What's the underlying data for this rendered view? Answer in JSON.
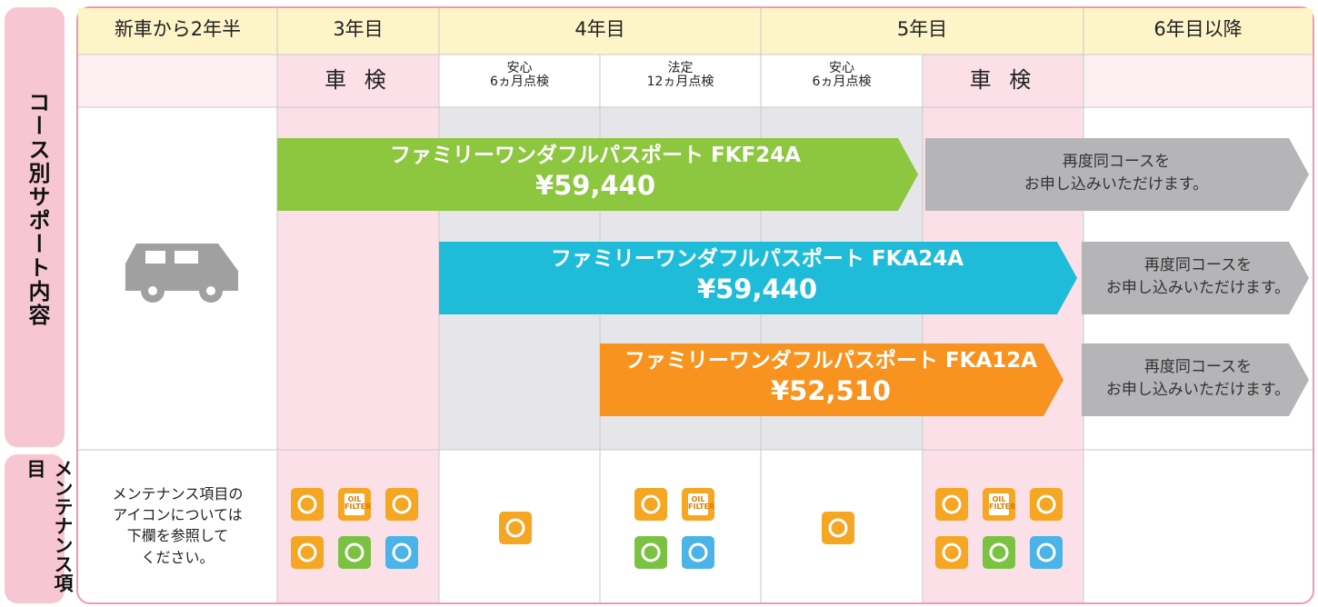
{
  "side_labels": [
    "コース別サポート内容",
    "メンテナンス項目"
  ],
  "header": [
    "新車から2年半",
    "3年目",
    "4年目",
    "5年目",
    "6年目以降"
  ],
  "inspections": [
    [
      "車 検"
    ],
    [
      "安心",
      "6ヵ月点検"
    ],
    [
      "法定",
      "12ヵ月点検"
    ],
    [
      "安心",
      "6ヵ月点検"
    ],
    [
      "車 検"
    ]
  ],
  "courses": [
    {
      "name": "ファミリーワンダフルパスポート FKF24A",
      "price": "¥59,440",
      "renewal": [
        "再度同コースを",
        "お申し込みいただけます。"
      ]
    },
    {
      "name": "ファミリーワンダフルパスポート FKA24A",
      "price": "¥59,440",
      "renewal": [
        "再度同コースを",
        "お申し込みいただけます。"
      ]
    },
    {
      "name": "ファミリーワンダフルパスポート FKA12A",
      "price": "¥52,510",
      "renewal": [
        "再度同コースを",
        "お申し込みいただけます。"
      ]
    }
  ],
  "maintenance_note": [
    "メンテナンス項目の",
    "アイコンについては",
    "下欄を参照して",
    "ください。"
  ],
  "oil_filter_label": [
    "OIL",
    "FILTER"
  ]
}
